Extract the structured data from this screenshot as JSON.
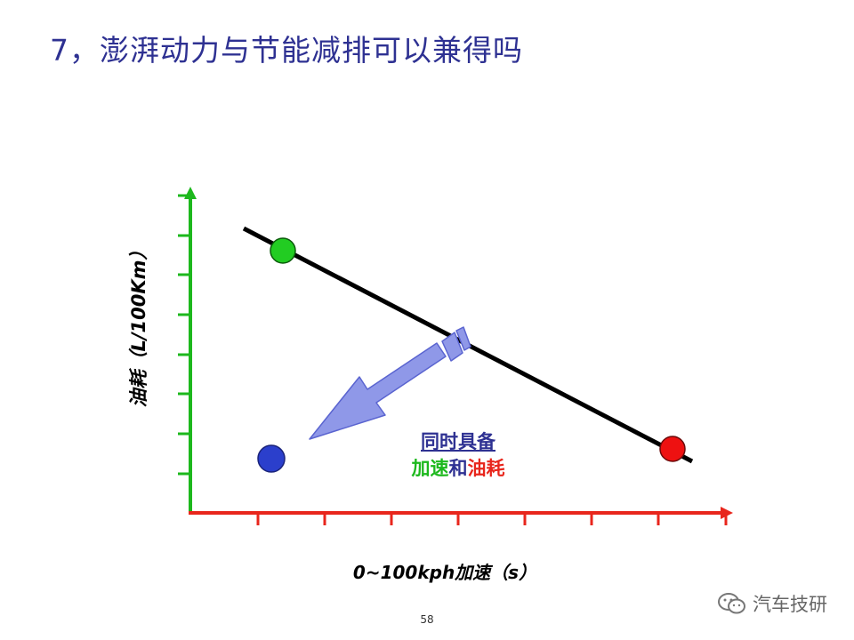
{
  "slide": {
    "title": "7，澎湃动力与节能减排可以兼得吗",
    "page_number": "58"
  },
  "axes": {
    "y_label": "油耗（L/100Km）",
    "x_label": "0~100kph加速（s）",
    "x_color": "#E8261C",
    "y_color": "#1DB81D"
  },
  "callout": {
    "line1": "同时具备",
    "line2_part1": "加速",
    "line2_part2": "和",
    "line2_part3": "油耗",
    "colors": {
      "part1": "#1DB81D",
      "part2": "#2E3192",
      "part3": "#E8261C"
    }
  },
  "points": [
    {
      "name": "green-point",
      "color": "#22CC22"
    },
    {
      "name": "red-point",
      "color": "#EE1111"
    },
    {
      "name": "blue-point",
      "color": "#2B3FCC"
    }
  ],
  "arrow": {
    "color": "#8F98E8"
  },
  "watermark": {
    "text": "汽车技研",
    "icon": "wechat-icon"
  }
}
